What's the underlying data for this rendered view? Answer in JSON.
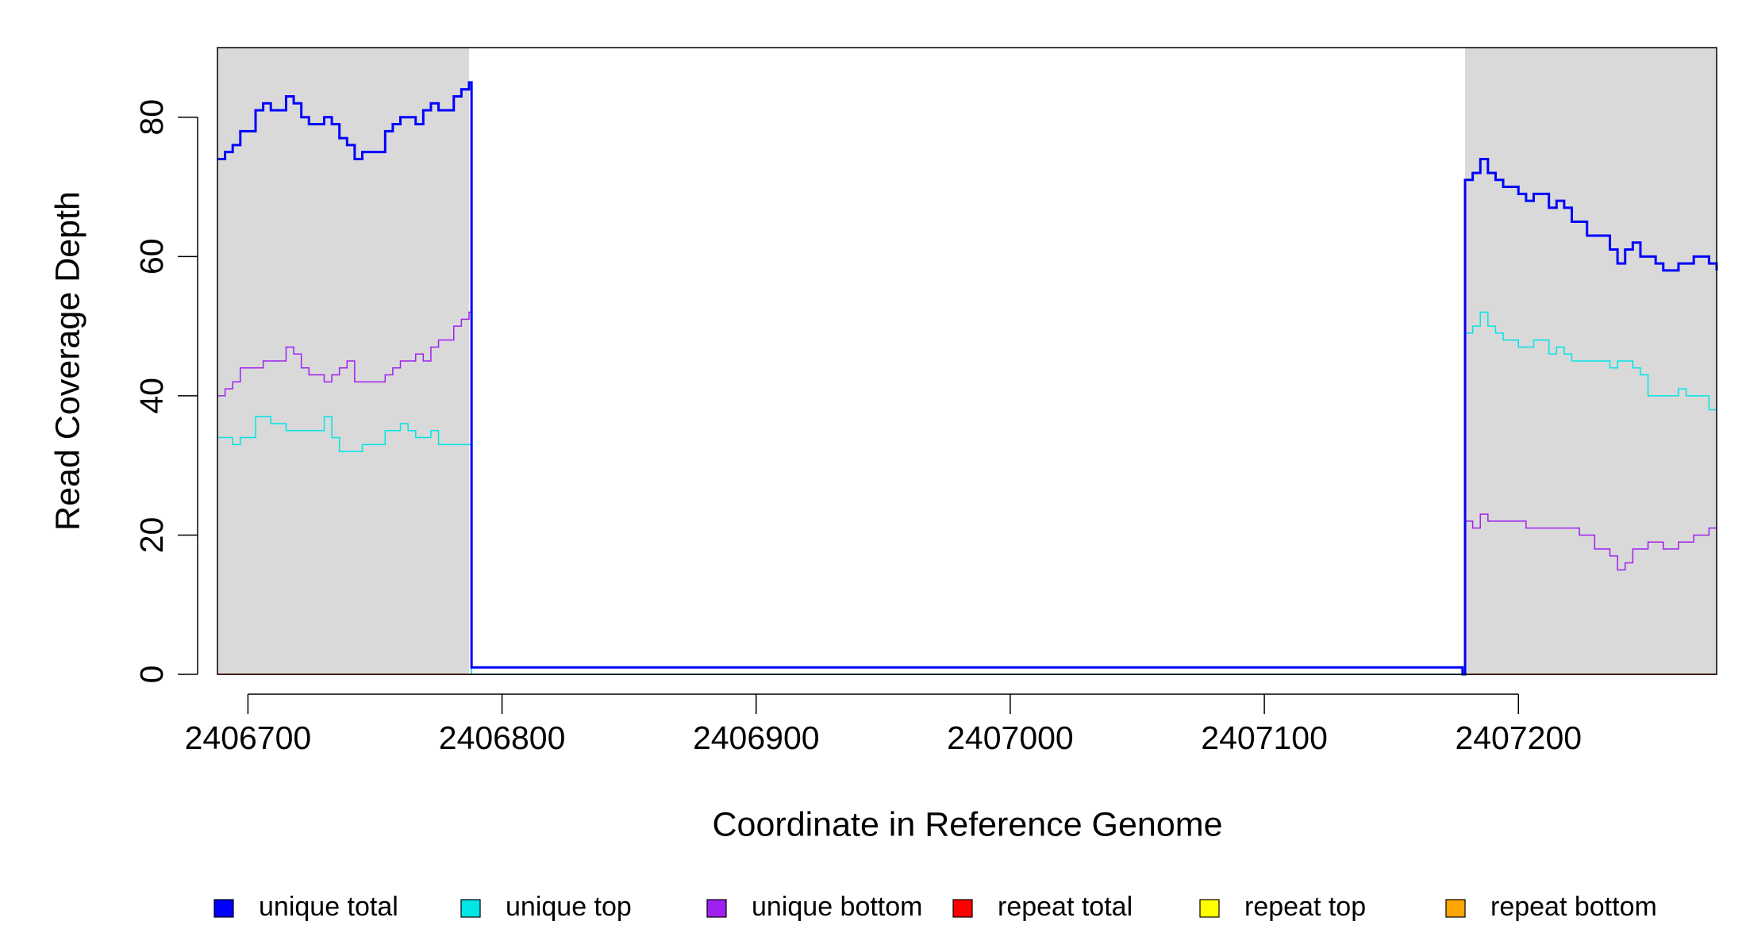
{
  "chart_data": {
    "type": "step",
    "xlabel": "Coordinate in Reference Genome",
    "ylabel": "Read Coverage Depth",
    "xlim": [
      2406688,
      2407278
    ],
    "ylim": [
      0,
      90
    ],
    "xticks": [
      2406700,
      2406800,
      2406900,
      2407000,
      2407100,
      2407200
    ],
    "yticks": [
      0,
      20,
      40,
      60,
      80
    ],
    "highlight_regions": [
      [
        2406688,
        2406787
      ],
      [
        2407179,
        2407278
      ]
    ],
    "highlight_color": "#d9d9d9",
    "x": [
      2406688,
      2406691,
      2406694,
      2406697,
      2406700,
      2406703,
      2406706,
      2406709,
      2406712,
      2406715,
      2406718,
      2406721,
      2406724,
      2406727,
      2406730,
      2406733,
      2406736,
      2406739,
      2406742,
      2406745,
      2406748,
      2406751,
      2406754,
      2406757,
      2406760,
      2406763,
      2406766,
      2406769,
      2406772,
      2406775,
      2406778,
      2406781,
      2406784,
      2406787,
      2406788,
      2407178,
      2407179,
      2407182,
      2407185,
      2407188,
      2407191,
      2407194,
      2407197,
      2407200,
      2407203,
      2407206,
      2407209,
      2407212,
      2407215,
      2407218,
      2407221,
      2407224,
      2407227,
      2407230,
      2407233,
      2407236,
      2407239,
      2407242,
      2407245,
      2407248,
      2407251,
      2407254,
      2407257,
      2407260,
      2407263,
      2407266,
      2407269,
      2407272,
      2407275,
      2407278
    ],
    "series": [
      {
        "name": "unique total",
        "color": "#0000ff",
        "width": 3,
        "values": [
          74,
          75,
          76,
          78,
          78,
          81,
          82,
          81,
          81,
          83,
          82,
          80,
          79,
          79,
          80,
          79,
          77,
          76,
          74,
          75,
          75,
          75,
          78,
          79,
          80,
          80,
          79,
          81,
          82,
          81,
          81,
          83,
          84,
          85,
          1,
          0,
          71,
          72,
          74,
          72,
          71,
          70,
          70,
          69,
          68,
          69,
          69,
          67,
          68,
          67,
          65,
          65,
          63,
          63,
          63,
          61,
          59,
          61,
          62,
          60,
          60,
          59,
          58,
          58,
          59,
          59,
          60,
          60,
          59,
          58
        ]
      },
      {
        "name": "unique top",
        "color": "#00e5e5",
        "width": 1.5,
        "values": [
          34,
          34,
          33,
          34,
          34,
          37,
          37,
          36,
          36,
          35,
          35,
          35,
          35,
          35,
          37,
          34,
          32,
          32,
          32,
          33,
          33,
          33,
          35,
          35,
          36,
          35,
          34,
          34,
          35,
          33,
          33,
          33,
          33,
          33,
          0,
          0,
          49,
          50,
          52,
          50,
          49,
          48,
          48,
          47,
          47,
          48,
          48,
          46,
          47,
          46,
          45,
          45,
          45,
          45,
          45,
          44,
          45,
          45,
          44,
          43,
          40,
          40,
          40,
          40,
          41,
          40,
          40,
          40,
          38,
          38
        ]
      },
      {
        "name": "unique bottom",
        "color": "#a020f0",
        "width": 1.5,
        "values": [
          40,
          41,
          42,
          44,
          44,
          44,
          45,
          45,
          45,
          47,
          46,
          44,
          43,
          43,
          42,
          43,
          44,
          45,
          42,
          42,
          42,
          42,
          43,
          44,
          45,
          45,
          46,
          45,
          47,
          48,
          48,
          50,
          51,
          52,
          0,
          0,
          22,
          21,
          23,
          22,
          22,
          22,
          22,
          22,
          21,
          21,
          21,
          21,
          21,
          21,
          21,
          20,
          20,
          18,
          18,
          17,
          15,
          16,
          18,
          18,
          19,
          19,
          18,
          18,
          19,
          19,
          20,
          20,
          21,
          21
        ]
      },
      {
        "name": "repeat total",
        "color": "#ff0000",
        "width": 1.5,
        "values": [
          0,
          0,
          0,
          0,
          0,
          0,
          0,
          0,
          0,
          0,
          0,
          0,
          0,
          0,
          0,
          0,
          0,
          0,
          0,
          0,
          0,
          0,
          0,
          0,
          0,
          0,
          0,
          0,
          0,
          0,
          0,
          0,
          0,
          0,
          0,
          0,
          0,
          0,
          0,
          0,
          0,
          0,
          0,
          0,
          0,
          0,
          0,
          0,
          0,
          0,
          0,
          0,
          0,
          0,
          0,
          0,
          0,
          0,
          0,
          0,
          0,
          0,
          0,
          0,
          0,
          0,
          0,
          0,
          0,
          0
        ]
      },
      {
        "name": "repeat top",
        "color": "#ffff00",
        "width": 1.5,
        "values": [
          0,
          0,
          0,
          0,
          0,
          0,
          0,
          0,
          0,
          0,
          0,
          0,
          0,
          0,
          0,
          0,
          0,
          0,
          0,
          0,
          0,
          0,
          0,
          0,
          0,
          0,
          0,
          0,
          0,
          0,
          0,
          0,
          0,
          0,
          0,
          0,
          0,
          0,
          0,
          0,
          0,
          0,
          0,
          0,
          0,
          0,
          0,
          0,
          0,
          0,
          0,
          0,
          0,
          0,
          0,
          0,
          0,
          0,
          0,
          0,
          0,
          0,
          0,
          0,
          0,
          0,
          0,
          0,
          0,
          0
        ]
      },
      {
        "name": "repeat bottom",
        "color": "#ffa500",
        "width": 1.5,
        "values": [
          0,
          0,
          0,
          0,
          0,
          0,
          0,
          0,
          0,
          0,
          0,
          0,
          0,
          0,
          0,
          0,
          0,
          0,
          0,
          0,
          0,
          0,
          0,
          0,
          0,
          0,
          0,
          0,
          0,
          0,
          0,
          0,
          0,
          0,
          0,
          0,
          0,
          0,
          0,
          0,
          0,
          0,
          0,
          0,
          0,
          0,
          0,
          0,
          0,
          0,
          0,
          0,
          0,
          0,
          0,
          0,
          0,
          0,
          0,
          0,
          0,
          0,
          0,
          0,
          0,
          0,
          0,
          0,
          0,
          0
        ]
      }
    ]
  }
}
